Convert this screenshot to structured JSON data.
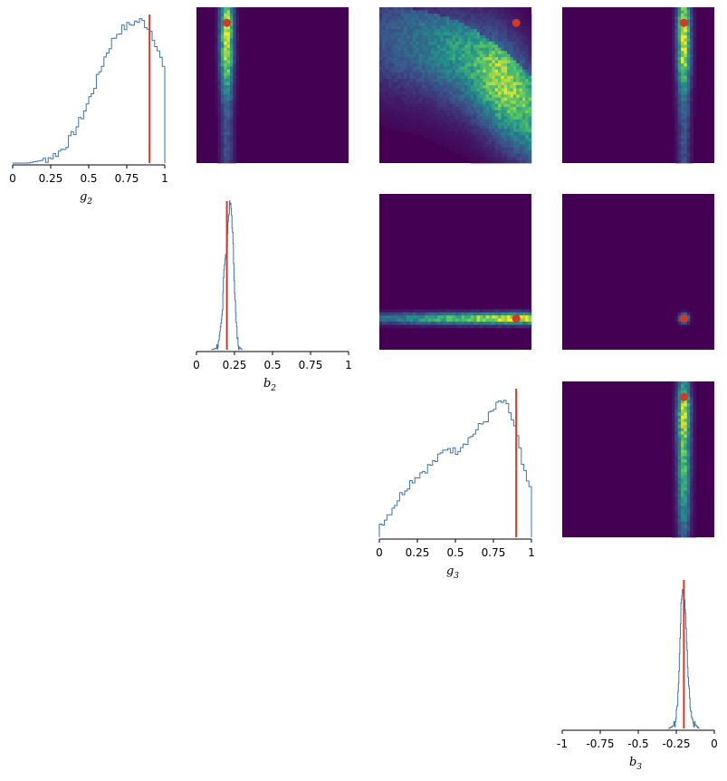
{
  "chart_data": {
    "type": "corner",
    "parameters": [
      {
        "key": "g2",
        "label": "g",
        "subscript": "2",
        "range": [
          0,
          1
        ],
        "truth": 0.9,
        "ticks": [
          "0",
          "0.25",
          "0.5",
          "0.75",
          "1"
        ]
      },
      {
        "key": "b2",
        "label": "b",
        "subscript": "2",
        "range": [
          0,
          1
        ],
        "truth": 0.2,
        "ticks": [
          "0",
          "0.25",
          "0.5",
          "0.75",
          "1"
        ]
      },
      {
        "key": "g3",
        "label": "g",
        "subscript": "3",
        "range": [
          0,
          1
        ],
        "truth": 0.9,
        "ticks": [
          "0",
          "0.25",
          "0.5",
          "0.75",
          "1"
        ]
      },
      {
        "key": "b3",
        "label": "b",
        "subscript": "3",
        "range": [
          -1,
          0
        ],
        "truth": -0.2,
        "ticks": [
          "-1",
          "-0.75",
          "-0.5",
          "-0.25",
          "0"
        ]
      }
    ],
    "colors": {
      "histogram": "#3a76ad",
      "truth": "#d03a27",
      "heatmap_low": "#440154",
      "heatmap_mid": "#21918c",
      "heatmap_high": "#fde725"
    },
    "histograms": [
      {
        "param": "g2",
        "x": [
          0,
          0.1,
          0.15,
          0.2,
          0.25,
          0.3,
          0.35,
          0.4,
          0.45,
          0.5,
          0.55,
          0.6,
          0.65,
          0.7,
          0.75,
          0.8,
          0.85,
          0.9,
          0.95,
          1.0
        ],
        "density": [
          0,
          0,
          0.01,
          0.02,
          0.04,
          0.07,
          0.12,
          0.2,
          0.3,
          0.42,
          0.55,
          0.7,
          0.82,
          0.9,
          0.93,
          0.96,
          0.97,
          0.92,
          0.8,
          0.62
        ]
      },
      {
        "param": "b2",
        "x": [
          0.1,
          0.13,
          0.15,
          0.17,
          0.18,
          0.19,
          0.2,
          0.21,
          0.22,
          0.23,
          0.24,
          0.25,
          0.26,
          0.27,
          0.28,
          0.3
        ],
        "density": [
          0,
          0.01,
          0.05,
          0.25,
          0.55,
          0.62,
          0.7,
          0.9,
          1.0,
          0.95,
          0.75,
          0.45,
          0.2,
          0.07,
          0.02,
          0
        ]
      },
      {
        "param": "g3",
        "x": [
          0,
          0.05,
          0.1,
          0.15,
          0.2,
          0.25,
          0.3,
          0.35,
          0.4,
          0.45,
          0.5,
          0.55,
          0.6,
          0.65,
          0.7,
          0.75,
          0.8,
          0.85,
          0.9,
          0.95,
          1.0
        ],
        "density": [
          0.08,
          0.14,
          0.22,
          0.3,
          0.37,
          0.42,
          0.46,
          0.5,
          0.55,
          0.62,
          0.58,
          0.64,
          0.68,
          0.74,
          0.8,
          0.86,
          0.93,
          0.88,
          0.72,
          0.45,
          0.3
        ]
      },
      {
        "param": "b3",
        "x": [
          -0.3,
          -0.28,
          -0.26,
          -0.25,
          -0.24,
          -0.23,
          -0.22,
          -0.21,
          -0.2,
          -0.19,
          -0.18,
          -0.17,
          -0.16,
          -0.15,
          -0.14,
          -0.12,
          -0.1
        ],
        "density": [
          0,
          0.01,
          0.03,
          0.08,
          0.2,
          0.45,
          0.8,
          0.96,
          0.92,
          0.8,
          0.55,
          0.32,
          0.18,
          0.1,
          0.05,
          0.02,
          0
        ]
      }
    ],
    "joint_densities": [
      {
        "row_param": "g2",
        "col_param": "b2",
        "shape": "vertical-band",
        "center": 0.2,
        "spread": 0.03,
        "truth": [
          0.2,
          0.9
        ]
      },
      {
        "row_param": "g2",
        "col_param": "g3",
        "shape": "curved-cloud",
        "center": [
          0.7,
          0.75
        ],
        "spread": 0.25,
        "truth": [
          0.9,
          0.9
        ]
      },
      {
        "row_param": "g2",
        "col_param": "b3",
        "shape": "vertical-band",
        "center": -0.2,
        "spread": 0.03,
        "truth": [
          -0.2,
          0.9
        ]
      },
      {
        "row_param": "b2",
        "col_param": "g3",
        "shape": "horizontal-band",
        "center": 0.2,
        "spread": 0.025,
        "truth": [
          0.9,
          0.2
        ]
      },
      {
        "row_param": "b2",
        "col_param": "b3",
        "shape": "spot",
        "center": [
          -0.2,
          0.2
        ],
        "spread": 0.02,
        "truth": [
          -0.2,
          0.2
        ]
      },
      {
        "row_param": "g3",
        "col_param": "b3",
        "shape": "vertical-band",
        "center": -0.2,
        "spread": 0.03,
        "truth": [
          -0.2,
          0.9
        ]
      }
    ],
    "grid": false,
    "legend": "none"
  }
}
